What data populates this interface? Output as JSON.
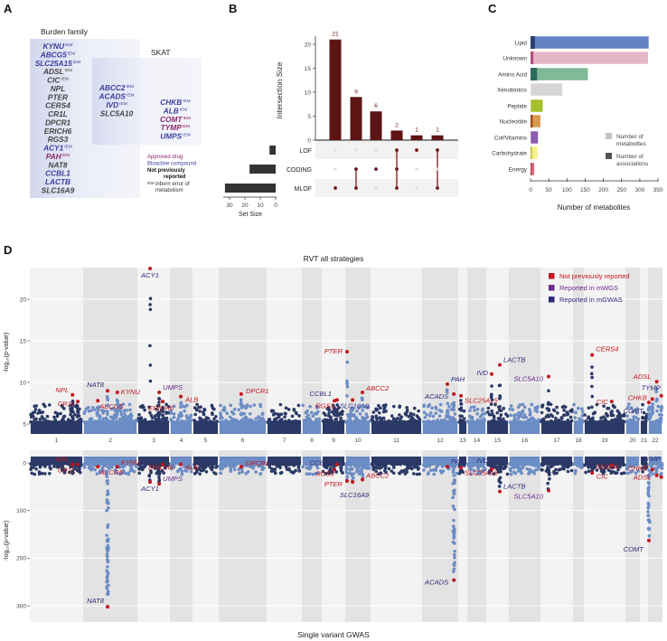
{
  "panel_labels": {
    "a": "A",
    "b": "B",
    "c": "C",
    "d": "D"
  },
  "colors": {
    "bioactive": "#3b3f9c",
    "approved": "#8a2868",
    "not_reported_gene": "#444444",
    "not_previously_reported": "#c0161e",
    "reported_mwgs": "#6a2a8c",
    "reported_mgwas": "#2c2a78",
    "chr_dark": "#2b3966",
    "chr_light": "#6b8cc5",
    "upset_bar": "#5e1414"
  },
  "panel_a": {
    "burden_title": "Burden family",
    "skat_title": "SKAT",
    "burden_only": [
      {
        "gene": "KYNU",
        "iem": "IEM",
        "cat": "bioactive"
      },
      {
        "gene": "ABCG5",
        "iem": "IEM",
        "cat": "bioactive"
      },
      {
        "gene": "SLC25A15",
        "iem": "IEM",
        "cat": "bioactive"
      },
      {
        "gene": "ADSL",
        "iem": "IEM",
        "cat": "not_reported_gene"
      },
      {
        "gene": "CIC",
        "iem": "IEM",
        "cat": "not_reported_gene"
      },
      {
        "gene": "NPL",
        "iem": "",
        "cat": "not_reported_gene"
      },
      {
        "gene": "PTER",
        "iem": "",
        "cat": "not_reported_gene"
      },
      {
        "gene": "CERS4",
        "iem": "",
        "cat": "not_reported_gene"
      },
      {
        "gene": "CR1L",
        "iem": "",
        "cat": "not_reported_gene"
      },
      {
        "gene": "DPCR1",
        "iem": "",
        "cat": "not_reported_gene"
      },
      {
        "gene": "ERICH6",
        "iem": "",
        "cat": "not_reported_gene"
      },
      {
        "gene": "RGS3",
        "iem": "",
        "cat": "not_reported_gene"
      },
      {
        "gene": "ACY1",
        "iem": "IEM",
        "cat": "bioactive"
      },
      {
        "gene": "PAH",
        "iem": "IEM",
        "cat": "approved"
      },
      {
        "gene": "NAT8",
        "iem": "",
        "cat": "not_reported_gene"
      },
      {
        "gene": "CCBL1",
        "iem": "",
        "cat": "bioactive"
      },
      {
        "gene": "LACTB",
        "iem": "",
        "cat": "bioactive"
      },
      {
        "gene": "SLC16A9",
        "iem": "",
        "cat": "not_reported_gene"
      }
    ],
    "both": [
      {
        "gene": "ABCC2",
        "iem": "IEM",
        "cat": "bioactive"
      },
      {
        "gene": "ACADS",
        "iem": "IEM",
        "cat": "bioactive"
      },
      {
        "gene": "IVD",
        "iem": "IEM",
        "cat": "bioactive"
      },
      {
        "gene": "SLC5A10",
        "iem": "",
        "cat": "not_reported_gene"
      }
    ],
    "skat_only": [
      {
        "gene": "CHKB",
        "iem": "IEM",
        "cat": "bioactive"
      },
      {
        "gene": "ALB",
        "iem": "IEM",
        "cat": "bioactive"
      },
      {
        "gene": "COMT",
        "iem": "IEM",
        "cat": "approved"
      },
      {
        "gene": "TYMP",
        "iem": "IEM",
        "cat": "approved"
      },
      {
        "gene": "UMPS",
        "iem": "IEM",
        "cat": "bioactive"
      }
    ],
    "legend": {
      "approved": "Approved drug",
      "bioactive": "Bioactive compound",
      "not_reported_1": "Not previously",
      "not_reported_2": "reported",
      "iem_sup": "IEM",
      "iem_text_1": "inborn error of",
      "iem_text_2": "metabolism"
    }
  },
  "chart_data": [
    {
      "type": "upset",
      "ylabel": "Intersection Size",
      "yticks": [
        0,
        5,
        10,
        15,
        20
      ],
      "ylim": [
        0,
        21
      ],
      "sets": [
        {
          "name": "LOF",
          "size": 4
        },
        {
          "name": "CODING",
          "size": 17
        },
        {
          "name": "MLOF",
          "size": 33
        }
      ],
      "intersections": [
        {
          "value": 21,
          "label": "21",
          "sets": [
            "MLOF"
          ]
        },
        {
          "value": 9,
          "label": "9",
          "sets": [
            "CODING",
            "MLOF"
          ]
        },
        {
          "value": 6,
          "label": "6",
          "sets": [
            "CODING"
          ]
        },
        {
          "value": 2,
          "label": "2",
          "sets": [
            "LOF",
            "CODING",
            "MLOF"
          ]
        },
        {
          "value": 1,
          "label": "1",
          "sets": [
            "LOF"
          ]
        },
        {
          "value": 1,
          "label": "1",
          "sets": [
            "LOF",
            "MLOF"
          ]
        }
      ],
      "set_size_label": "Set Size",
      "set_size_ticks": [
        30,
        20,
        10,
        0
      ]
    },
    {
      "type": "bar",
      "orientation": "horizontal",
      "xlabel": "Number of metabolites",
      "xlim": [
        0,
        350
      ],
      "xticks": [
        0,
        50,
        100,
        150,
        200,
        250,
        300,
        350
      ],
      "categories": [
        "Lipid",
        "Unknown",
        "Amino Acid",
        "Xenobiotics",
        "Peptide",
        "Nucleotide",
        "Cof/Vitamins",
        "Carbohydrate",
        "Energy"
      ],
      "series": [
        {
          "name": "Number of metabolites",
          "values": [
            325,
            323,
            158,
            88,
            34,
            28,
            21,
            20,
            11
          ]
        },
        {
          "name": "Number of associations",
          "values": [
            12,
            8,
            18,
            0,
            0,
            6,
            0,
            4,
            3
          ]
        }
      ],
      "colors": [
        "#6483c5",
        "#e5b6c8",
        "#80b997",
        "#d5d5d5",
        "#a5c02d",
        "#d99b52",
        "#8a5bb0",
        "#f5f28c",
        "#d96b79"
      ],
      "assoc_colors": [
        "#2d3f6f",
        "#b3507f",
        "#2f6b5f",
        "#d5d5d5",
        "#a5c02d",
        "#a34a19",
        "#8a5bb0",
        "#c9ba42",
        "#b23a4a"
      ],
      "legend": {
        "metabolites_1": "Number of",
        "metabolites_2": "metabolites",
        "assoc_1": "Number of",
        "assoc_2": "associations",
        "position": "bottom-right"
      }
    },
    {
      "type": "scatter",
      "subtype": "manhattan",
      "title": "RVT all strategies",
      "bottom_title": "Single variant GWAS",
      "ylabel": "-log₁₀(p-value)",
      "top_yticks": [
        5,
        10,
        15,
        20
      ],
      "top_ylim": [
        3.8,
        24.5
      ],
      "bottom_yticks": [
        0,
        100,
        200,
        300
      ],
      "bottom_ylim": [
        -27,
        335
      ],
      "chromosomes": [
        "1",
        "2",
        "3",
        "4",
        "5",
        "6",
        "7",
        "8",
        "9",
        "10",
        "11",
        "12",
        "13",
        "14",
        "15",
        "16",
        "17",
        "18",
        "19",
        "20",
        "21",
        "22"
      ],
      "legend": [
        {
          "label": "Not previously reported",
          "cat": "not_previously_reported"
        },
        {
          "label": "Reported in mWGS",
          "cat": "reported_mwgs"
        },
        {
          "label": "Reported in mGWAS",
          "cat": "reported_mgwas"
        }
      ],
      "hits": [
        {
          "gene": "NPL",
          "chr": 1,
          "pos": 0.8,
          "rvt": 8.5,
          "gwas": 3,
          "cat": "not_previously_reported"
        },
        {
          "gene": "CR1L",
          "chr": 1,
          "pos": 0.9,
          "rvt": 7.7,
          "gwas": 3,
          "cat": "not_previously_reported"
        },
        {
          "gene": "ABCG5",
          "chr": 2,
          "pos": 0.27,
          "rvt": 7.8,
          "gwas": 8,
          "cat": "not_previously_reported"
        },
        {
          "gene": "NAT8",
          "chr": 2,
          "pos": 0.45,
          "rvt": 9.0,
          "gwas": 302,
          "cat": "reported_mgwas"
        },
        {
          "gene": "KYNU",
          "chr": 2,
          "pos": 0.63,
          "rvt": 8.8,
          "gwas": 8,
          "cat": "not_previously_reported"
        },
        {
          "gene": "ACY1",
          "chr": 3,
          "pos": 0.39,
          "rvt": 23.7,
          "gwas": 40,
          "cat": "reported_mgwas"
        },
        {
          "gene": "UMPS",
          "chr": 3,
          "pos": 0.67,
          "rvt": 8.8,
          "gwas": 44,
          "cat": "reported_mwgs"
        },
        {
          "gene": "ERICH6",
          "chr": 3,
          "pos": 0.78,
          "rvt": 7.7,
          "gwas": 3,
          "cat": "not_previously_reported"
        },
        {
          "gene": "ALB",
          "chr": 4,
          "pos": 0.48,
          "rvt": 8.3,
          "gwas": 3,
          "cat": "not_previously_reported"
        },
        {
          "gene": "DPCR1",
          "chr": 6,
          "pos": 0.47,
          "rvt": 8.6,
          "gwas": 8,
          "cat": "not_previously_reported"
        },
        {
          "gene": "CCBL1",
          "chr": 9,
          "pos": 0.54,
          "rvt": 7.8,
          "gwas": 14,
          "cat": "reported_mgwas"
        },
        {
          "gene": "RGS3",
          "chr": 9,
          "pos": 0.65,
          "rvt": 7.9,
          "gwas": 3,
          "cat": "not_previously_reported"
        },
        {
          "gene": "PTER",
          "chr": 10,
          "pos": 0.07,
          "rvt": 13.7,
          "gwas": 38,
          "cat": "not_previously_reported"
        },
        {
          "gene": "SLC16A9",
          "chr": 10,
          "pos": 0.29,
          "rvt": 7.9,
          "gwas": 40,
          "cat": "reported_mgwas"
        },
        {
          "gene": "ABCC2",
          "chr": 10,
          "pos": 0.68,
          "rvt": 8.8,
          "gwas": 35,
          "cat": "not_previously_reported"
        },
        {
          "gene": "PAH",
          "chr": 12,
          "pos": 0.7,
          "rvt": 9.8,
          "gwas": 8,
          "cat": "reported_mgwas"
        },
        {
          "gene": "ACADS",
          "chr": 12,
          "pos": 0.88,
          "rvt": 8.6,
          "gwas": 246,
          "cat": "reported_mgwas"
        },
        {
          "gene": "SLC25A15",
          "chr": 13,
          "pos": 0.3,
          "rvt": 8.4,
          "gwas": 10,
          "cat": "not_previously_reported"
        },
        {
          "gene": "IVD",
          "chr": 15,
          "pos": 0.24,
          "rvt": 11.0,
          "gwas": 13,
          "cat": "reported_mgwas"
        },
        {
          "gene": "LACTB",
          "chr": 15,
          "pos": 0.6,
          "rvt": 12.1,
          "gwas": 60,
          "cat": "reported_mgwas"
        },
        {
          "gene": "SLC5A10",
          "chr": 17,
          "pos": 0.25,
          "rvt": 10.7,
          "gwas": 58,
          "cat": "reported_mwgs"
        },
        {
          "gene": "CERS4",
          "chr": 19,
          "pos": 0.2,
          "rvt": 13.3,
          "gwas": 21,
          "cat": "not_previously_reported"
        },
        {
          "gene": "CIC",
          "chr": 19,
          "pos": 0.67,
          "rvt": 7.7,
          "gwas": 5,
          "cat": "not_previously_reported"
        },
        {
          "gene": "COMT",
          "chr": 22,
          "pos": 0.06,
          "rvt": 7.6,
          "gwas": 163,
          "cat": "reported_mgwas"
        },
        {
          "gene": "CHKB",
          "chr": 22,
          "pos": 0.3,
          "rvt": 8.0,
          "gwas": 14,
          "cat": "not_previously_reported"
        },
        {
          "gene": "ADSL",
          "chr": 22,
          "pos": 0.6,
          "rvt": 10.1,
          "gwas": 26,
          "cat": "not_previously_reported"
        },
        {
          "gene": "TYMP",
          "chr": 22,
          "pos": 0.92,
          "rvt": 8.4,
          "gwas": 30,
          "cat": "reported_mgwas"
        }
      ]
    }
  ]
}
